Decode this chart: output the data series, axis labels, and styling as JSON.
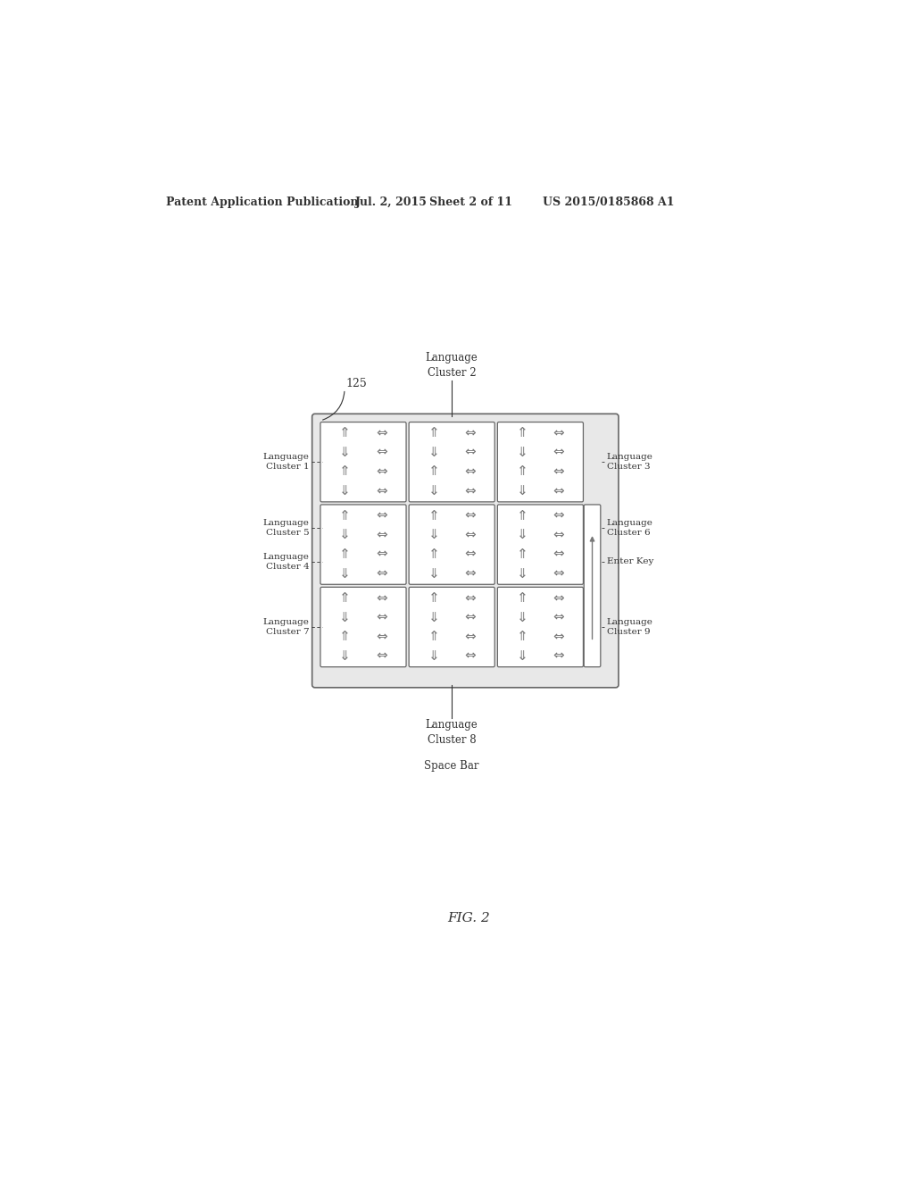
{
  "bg_color": "#ffffff",
  "header_text": "Patent Application Publication",
  "header_date": "Jul. 2, 2015",
  "header_sheet": "Sheet 2 of 11",
  "header_patent": "US 2015/0185868 A1",
  "fig_label": "FIG. 2",
  "ref_125": "125",
  "label_cluster2": "Language\nCluster 2",
  "label_cluster8": "Language\nCluster 8",
  "label_spacebar": "Space Bar",
  "label_cluster1": "Language\nCluster 1",
  "label_cluster3": "Language\nCluster 3",
  "label_cluster5": "Language\nCluster 5",
  "label_cluster4": "Language\nCluster 4",
  "label_cluster6": "Language\nCluster 6",
  "label_cluster7": "Language\nCluster 7",
  "label_cluster9": "Language\nCluster 9",
  "label_enterkey": "Enter Key",
  "edge_color": "#555555",
  "text_color": "#333333",
  "line_color": "#333333",
  "arrow_fill": "#888888",
  "outer_face": "#e8e8e8",
  "cell_face": "#f5f5f5"
}
